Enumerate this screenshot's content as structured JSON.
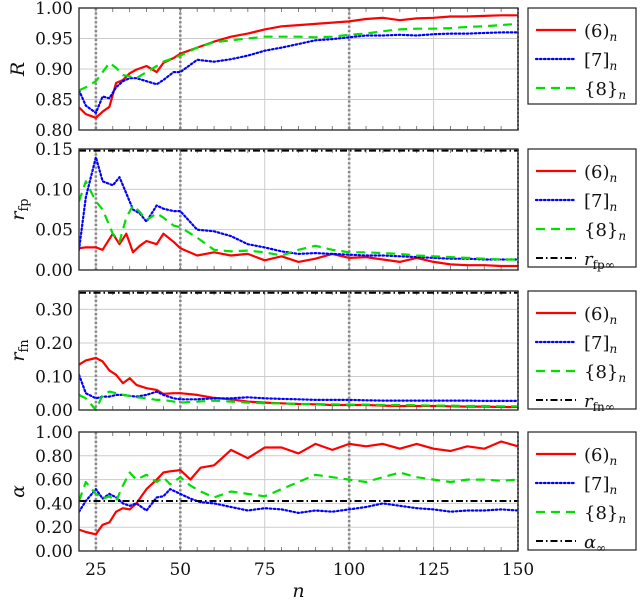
{
  "figure": {
    "xlabel": "n",
    "x_ticks": [
      "25",
      "50",
      "75",
      "100",
      "125",
      "150"
    ]
  },
  "panels": [
    {
      "ylabel": "R",
      "y_ticks": [
        "0.80",
        "0.85",
        "0.90",
        "0.95",
        "1.00"
      ],
      "legend": [
        "(6)",
        "[7]",
        "{8}"
      ]
    },
    {
      "ylabel": "r_fp",
      "ylabel_main": "r",
      "ylabel_sub": "fp",
      "y_ticks": [
        "0.00",
        "0.05",
        "0.10",
        "0.15"
      ],
      "legend": [
        "(6)",
        "[7]",
        "{8}",
        "r_fp∞"
      ],
      "legend_ref_main": "r",
      "legend_ref_sub": "fp∞"
    },
    {
      "ylabel": "r_fn",
      "ylabel_main": "r",
      "ylabel_sub": "fn",
      "y_ticks": [
        "0.00",
        "0.10",
        "0.20",
        "0.30"
      ],
      "legend": [
        "(6)",
        "[7]",
        "{8}",
        "r_fn∞"
      ],
      "legend_ref_main": "r",
      "legend_ref_sub": "fn∞"
    },
    {
      "ylabel": "α",
      "y_ticks": [
        "0.00",
        "0.20",
        "0.40",
        "0.60",
        "0.80",
        "1.00"
      ],
      "legend": [
        "(6)",
        "[7]",
        "{8}",
        "α∞"
      ],
      "legend_ref_main": "α",
      "legend_ref_sub": "∞"
    }
  ],
  "legend_sub": "n",
  "colors": {
    "series_6": "#ff0000",
    "series_7": "#0000ff",
    "series_8": "#00e000",
    "reference": "#000000",
    "grid": "#cccccc",
    "vline": "#888888"
  },
  "chart_data": [
    {
      "type": "line",
      "title": "",
      "xlabel": "n",
      "ylabel": "R",
      "xlim": [
        20,
        150
      ],
      "ylim": [
        0.8,
        1.0
      ],
      "grid": true,
      "vertical_markers": [
        25,
        50,
        100
      ],
      "legend_position": "right-outside",
      "x": [
        20,
        22,
        25,
        27,
        29,
        31,
        33,
        35,
        37,
        40,
        43,
        45,
        48,
        50,
        55,
        60,
        65,
        70,
        75,
        80,
        85,
        90,
        95,
        100,
        105,
        110,
        115,
        120,
        125,
        130,
        135,
        140,
        145,
        150
      ],
      "series": [
        {
          "name": "(6)_n",
          "style": "solid",
          "values": [
            0.837,
            0.826,
            0.82,
            0.83,
            0.838,
            0.877,
            0.882,
            0.893,
            0.899,
            0.905,
            0.895,
            0.91,
            0.918,
            0.925,
            0.935,
            0.945,
            0.953,
            0.958,
            0.965,
            0.97,
            0.972,
            0.974,
            0.976,
            0.978,
            0.982,
            0.984,
            0.98,
            0.983,
            0.984,
            0.986,
            0.986,
            0.987,
            0.988,
            0.988
          ]
        },
        {
          "name": "[7]_n",
          "style": "dotted",
          "values": [
            0.865,
            0.84,
            0.828,
            0.855,
            0.852,
            0.87,
            0.88,
            0.885,
            0.885,
            0.88,
            0.875,
            0.882,
            0.895,
            0.895,
            0.915,
            0.912,
            0.916,
            0.922,
            0.93,
            0.935,
            0.941,
            0.947,
            0.949,
            0.952,
            0.955,
            0.955,
            0.956,
            0.955,
            0.957,
            0.958,
            0.958,
            0.959,
            0.96,
            0.96
          ]
        },
        {
          "name": "{8}_n",
          "style": "dashed",
          "values": [
            0.865,
            0.87,
            0.88,
            0.895,
            0.91,
            0.902,
            0.89,
            0.888,
            0.885,
            0.895,
            0.905,
            0.912,
            0.918,
            0.922,
            0.935,
            0.944,
            0.947,
            0.95,
            0.953,
            0.953,
            0.953,
            0.952,
            0.953,
            0.956,
            0.958,
            0.962,
            0.965,
            0.966,
            0.966,
            0.967,
            0.969,
            0.97,
            0.972,
            0.974
          ]
        }
      ]
    },
    {
      "type": "line",
      "title": "",
      "xlabel": "n",
      "ylabel": "r_fp",
      "xlim": [
        20,
        150
      ],
      "ylim": [
        0.0,
        0.15
      ],
      "grid": true,
      "vertical_markers": [
        25,
        50,
        100
      ],
      "legend_position": "right-outside",
      "x": [
        20,
        22,
        25,
        27,
        30,
        32,
        34,
        36,
        38,
        40,
        43,
        45,
        48,
        50,
        55,
        60,
        65,
        70,
        75,
        80,
        85,
        90,
        95,
        100,
        105,
        110,
        115,
        120,
        125,
        130,
        135,
        140,
        145,
        150
      ],
      "series": [
        {
          "name": "(6)_n",
          "style": "solid",
          "values": [
            0.027,
            0.028,
            0.028,
            0.025,
            0.045,
            0.032,
            0.045,
            0.022,
            0.03,
            0.036,
            0.032,
            0.045,
            0.035,
            0.027,
            0.018,
            0.022,
            0.018,
            0.02,
            0.012,
            0.017,
            0.01,
            0.014,
            0.02,
            0.015,
            0.016,
            0.013,
            0.01,
            0.015,
            0.01,
            0.007,
            0.006,
            0.006,
            0.005,
            0.005
          ]
        },
        {
          "name": "[7]_n",
          "style": "dotted",
          "values": [
            0.025,
            0.09,
            0.14,
            0.11,
            0.105,
            0.115,
            0.095,
            0.075,
            0.07,
            0.06,
            0.08,
            0.076,
            0.073,
            0.073,
            0.05,
            0.048,
            0.042,
            0.032,
            0.028,
            0.023,
            0.02,
            0.021,
            0.02,
            0.019,
            0.018,
            0.018,
            0.017,
            0.016,
            0.015,
            0.014,
            0.014,
            0.013,
            0.013,
            0.013
          ]
        },
        {
          "name": "{8}_n",
          "style": "dashed",
          "values": [
            0.085,
            0.11,
            0.085,
            0.075,
            0.045,
            0.035,
            0.065,
            0.08,
            0.072,
            0.062,
            0.07,
            0.065,
            0.055,
            0.053,
            0.04,
            0.025,
            0.023,
            0.024,
            0.022,
            0.018,
            0.025,
            0.03,
            0.025,
            0.022,
            0.022,
            0.021,
            0.02,
            0.018,
            0.017,
            0.016,
            0.015,
            0.014,
            0.013,
            0.013
          ]
        },
        {
          "name": "r_fp∞",
          "style": "dashdot",
          "values": [
            0.148,
            0.148,
            0.148,
            0.148,
            0.148,
            0.148,
            0.148,
            0.148,
            0.148,
            0.148,
            0.148,
            0.148,
            0.148,
            0.148,
            0.148,
            0.148,
            0.148,
            0.148,
            0.148,
            0.148,
            0.148,
            0.148,
            0.148,
            0.148,
            0.148,
            0.148,
            0.148,
            0.148,
            0.148,
            0.148,
            0.148,
            0.148,
            0.148,
            0.148
          ]
        }
      ]
    },
    {
      "type": "line",
      "title": "",
      "xlabel": "n",
      "ylabel": "r_fn",
      "xlim": [
        20,
        150
      ],
      "ylim": [
        0.0,
        0.355
      ],
      "grid": true,
      "vertical_markers": [
        25,
        50,
        100
      ],
      "legend_position": "right-outside",
      "x": [
        20,
        22,
        25,
        27,
        29,
        31,
        33,
        35,
        37,
        40,
        43,
        45,
        48,
        50,
        55,
        60,
        65,
        70,
        75,
        80,
        85,
        90,
        95,
        100,
        105,
        110,
        115,
        120,
        125,
        130,
        135,
        140,
        145,
        150
      ],
      "series": [
        {
          "name": "(6)_n",
          "style": "solid",
          "values": [
            0.135,
            0.148,
            0.155,
            0.145,
            0.118,
            0.105,
            0.08,
            0.095,
            0.075,
            0.065,
            0.06,
            0.048,
            0.05,
            0.05,
            0.045,
            0.036,
            0.032,
            0.025,
            0.022,
            0.02,
            0.018,
            0.017,
            0.015,
            0.015,
            0.015,
            0.013,
            0.012,
            0.012,
            0.012,
            0.011,
            0.01,
            0.01,
            0.009,
            0.009
          ]
        },
        {
          "name": "[7]_n",
          "style": "dotted",
          "values": [
            0.105,
            0.05,
            0.035,
            0.04,
            0.04,
            0.045,
            0.045,
            0.042,
            0.04,
            0.045,
            0.055,
            0.045,
            0.035,
            0.032,
            0.032,
            0.035,
            0.035,
            0.038,
            0.035,
            0.033,
            0.032,
            0.03,
            0.03,
            0.03,
            0.029,
            0.028,
            0.028,
            0.028,
            0.028,
            0.028,
            0.028,
            0.027,
            0.027,
            0.027
          ]
        },
        {
          "name": "{8}_n",
          "style": "dashed",
          "values": [
            0.045,
            0.035,
            0.0,
            0.045,
            0.055,
            0.05,
            0.045,
            0.042,
            0.038,
            0.035,
            0.03,
            0.03,
            0.025,
            0.022,
            0.025,
            0.028,
            0.025,
            0.022,
            0.02,
            0.02,
            0.018,
            0.018,
            0.017,
            0.016,
            0.016,
            0.015,
            0.015,
            0.014,
            0.013,
            0.013,
            0.012,
            0.012,
            0.011,
            0.011
          ]
        },
        {
          "name": "r_fn∞",
          "style": "dashdot",
          "values": [
            0.35,
            0.35,
            0.35,
            0.35,
            0.35,
            0.35,
            0.35,
            0.35,
            0.35,
            0.35,
            0.35,
            0.35,
            0.35,
            0.35,
            0.35,
            0.35,
            0.35,
            0.35,
            0.35,
            0.35,
            0.35,
            0.35,
            0.35,
            0.35,
            0.35,
            0.35,
            0.35,
            0.35,
            0.35,
            0.35,
            0.35,
            0.35,
            0.35,
            0.35
          ]
        }
      ]
    },
    {
      "type": "line",
      "title": "",
      "xlabel": "n",
      "ylabel": "α",
      "xlim": [
        20,
        150
      ],
      "ylim": [
        0.0,
        1.0
      ],
      "grid": true,
      "vertical_markers": [
        25,
        50,
        100
      ],
      "legend_position": "right-outside",
      "x": [
        20,
        22,
        25,
        27,
        29,
        31,
        33,
        35,
        37,
        40,
        43,
        45,
        47,
        50,
        53,
        56,
        60,
        65,
        70,
        75,
        80,
        85,
        90,
        95,
        100,
        105,
        110,
        115,
        120,
        125,
        130,
        135,
        140,
        145,
        150
      ],
      "series": [
        {
          "name": "(6)_n",
          "style": "solid",
          "values": [
            0.18,
            0.16,
            0.14,
            0.22,
            0.24,
            0.33,
            0.36,
            0.35,
            0.4,
            0.52,
            0.6,
            0.66,
            0.67,
            0.68,
            0.6,
            0.7,
            0.72,
            0.85,
            0.78,
            0.87,
            0.87,
            0.82,
            0.9,
            0.85,
            0.9,
            0.88,
            0.9,
            0.86,
            0.9,
            0.86,
            0.84,
            0.88,
            0.86,
            0.92,
            0.88
          ]
        },
        {
          "name": "[7]_n",
          "style": "dotted",
          "values": [
            0.33,
            0.42,
            0.52,
            0.44,
            0.48,
            0.45,
            0.4,
            0.38,
            0.4,
            0.34,
            0.45,
            0.46,
            0.52,
            0.48,
            0.44,
            0.41,
            0.4,
            0.37,
            0.34,
            0.36,
            0.35,
            0.32,
            0.34,
            0.33,
            0.35,
            0.37,
            0.4,
            0.38,
            0.36,
            0.35,
            0.33,
            0.34,
            0.34,
            0.35,
            0.34
          ]
        },
        {
          "name": "{8}_n",
          "style": "dashed",
          "values": [
            0.42,
            0.58,
            0.48,
            0.44,
            0.46,
            0.42,
            0.55,
            0.66,
            0.6,
            0.64,
            0.58,
            0.62,
            0.56,
            0.62,
            0.55,
            0.5,
            0.45,
            0.5,
            0.48,
            0.46,
            0.52,
            0.58,
            0.64,
            0.62,
            0.6,
            0.58,
            0.62,
            0.66,
            0.62,
            0.6,
            0.58,
            0.6,
            0.6,
            0.59,
            0.6
          ]
        },
        {
          "name": "α∞",
          "style": "dashdot",
          "values": [
            0.42,
            0.42,
            0.42,
            0.42,
            0.42,
            0.42,
            0.42,
            0.42,
            0.42,
            0.42,
            0.42,
            0.42,
            0.42,
            0.42,
            0.42,
            0.42,
            0.42,
            0.42,
            0.42,
            0.42,
            0.42,
            0.42,
            0.42,
            0.42,
            0.42,
            0.42,
            0.42,
            0.42,
            0.42,
            0.42,
            0.42,
            0.42,
            0.42,
            0.42,
            0.42
          ]
        }
      ]
    }
  ]
}
